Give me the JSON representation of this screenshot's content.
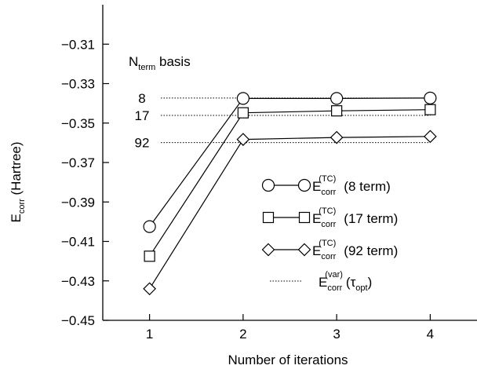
{
  "chart_data": {
    "type": "line",
    "xlabel": "Number of iterations",
    "ylabel_main": "E",
    "ylabel_sub": "corr",
    "ylabel_rest": " (Hartree)",
    "x": [
      1,
      2,
      3,
      4
    ],
    "xlim": [
      0.5,
      4.5
    ],
    "ylim": [
      -0.45,
      -0.29
    ],
    "xticks": [
      1,
      2,
      3,
      4
    ],
    "yticks": [
      -0.31,
      -0.33,
      -0.35,
      -0.37,
      -0.39,
      -0.41,
      -0.43,
      -0.45
    ],
    "ytick_labels": [
      "−0.31",
      "−0.33",
      "−0.35",
      "−0.37",
      "−0.39",
      "−0.41",
      "−0.43",
      "−0.45"
    ],
    "grid": false,
    "legend_position": "lower-right",
    "series": [
      {
        "legend_main": "E",
        "legend_sub": "corr",
        "legend_sup": "(TC)",
        "legend_tail": "(8 term)",
        "marker": "circle",
        "values": [
          -0.4025,
          -0.3375,
          -0.3375,
          -0.3373
        ]
      },
      {
        "legend_main": "E",
        "legend_sub": "corr",
        "legend_sup": "(TC)",
        "legend_tail": "(17 term)",
        "marker": "square",
        "values": [
          -0.4175,
          -0.3448,
          -0.3438,
          -0.3432
        ]
      },
      {
        "legend_main": "E",
        "legend_sub": "corr",
        "legend_sup": "(TC)",
        "legend_tail": "(92 term)",
        "marker": "diamond",
        "values": [
          -0.434,
          -0.3583,
          -0.3573,
          -0.3568
        ]
      }
    ],
    "reference_lines": [
      {
        "label": "8",
        "value": -0.3373
      },
      {
        "label": "17",
        "value": -0.3461
      },
      {
        "label": "92",
        "value": -0.3599
      }
    ],
    "reference_legend": {
      "main": "E",
      "sub": "corr",
      "sup": "(var)",
      "tail_open": "(",
      "tau": "τ",
      "tau_sub": "opt",
      "tail_close": ")"
    },
    "annotation": {
      "main": "N",
      "sub": "term",
      "tail": " basis"
    }
  }
}
